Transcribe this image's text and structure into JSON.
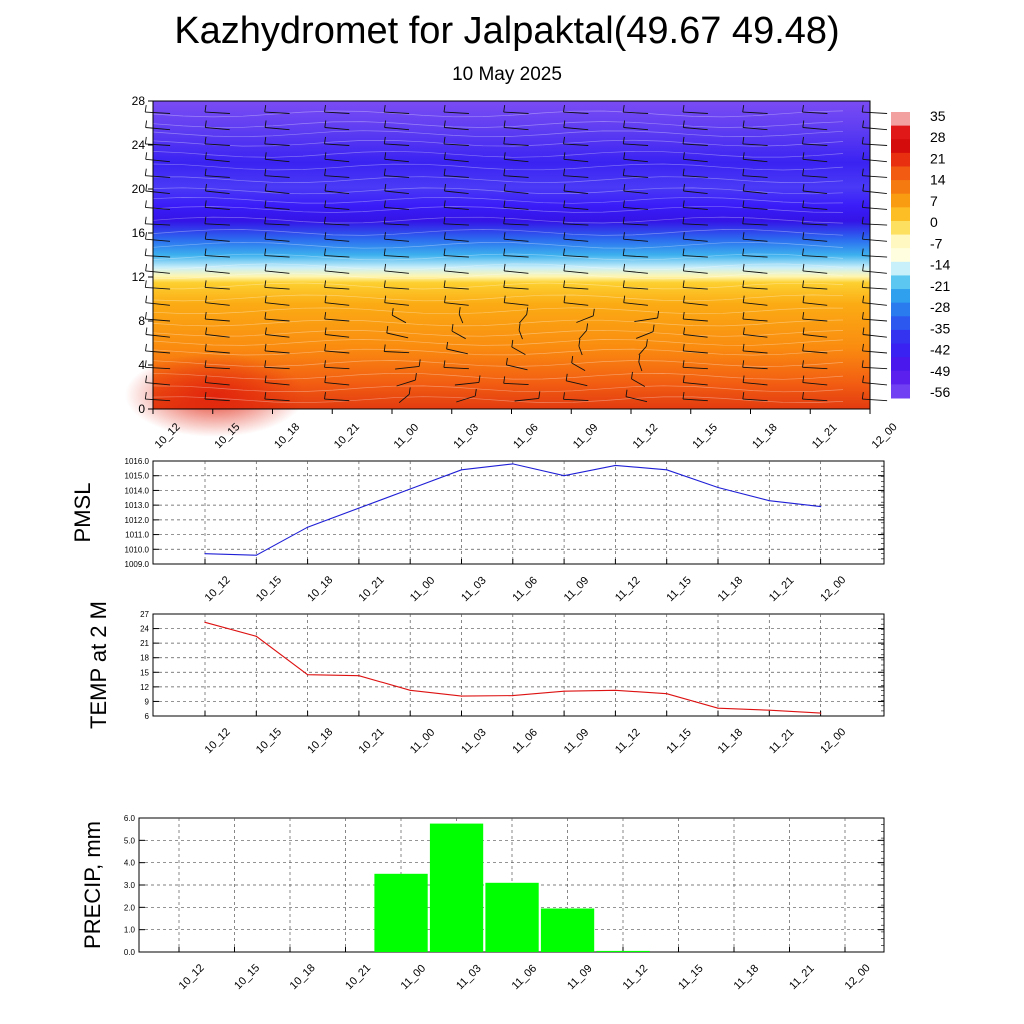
{
  "title": "Kazhydromet for Jalpaktal(49.67 49.48)",
  "subtitle": "10 May 2025",
  "colors": {
    "pmsl_line": "#1f1fd6",
    "temp_line": "#dd1111",
    "precip_bar": "#00ff00",
    "grid": "#555555"
  },
  "chart_data": [
    {
      "type": "heatmap",
      "id": "cross-section",
      "x_ticks": [
        "10_12",
        "10_15",
        "10_18",
        "10_21",
        "11_00",
        "11_03",
        "11_06",
        "11_09",
        "11_12",
        "11_15",
        "11_18",
        "11_21",
        "12_00"
      ],
      "y_ticks": [
        "0",
        "4",
        "8",
        "12",
        "16",
        "20",
        "24",
        "28"
      ],
      "ylim": [
        0,
        28
      ],
      "colorbar_labels": [
        "35",
        "28",
        "21",
        "14",
        "7",
        "0",
        "-7",
        "-14",
        "-21",
        "-28",
        "-35",
        "-42",
        "-49",
        "-56"
      ],
      "colorbar_range": [
        -60,
        38
      ],
      "grid": false,
      "legend": "right"
    },
    {
      "type": "line",
      "id": "pmsl",
      "ylabel": "PMSL",
      "categories": [
        "10_12",
        "10_15",
        "10_18",
        "10_21",
        "11_00",
        "11_03",
        "11_06",
        "11_09",
        "11_12",
        "11_15",
        "11_18",
        "11_21",
        "12_00"
      ],
      "values": [
        1009.7,
        1009.6,
        1011.5,
        1012.8,
        1014.1,
        1015.4,
        1015.8,
        1015.0,
        1015.7,
        1015.4,
        1014.2,
        1013.3,
        1012.9
      ],
      "ylim": [
        1009.0,
        1016.0
      ],
      "y_ticks": [
        "1016.0",
        "1015.0",
        "1014.0",
        "1013.0",
        "1012.0",
        "1011.0",
        "1010.0",
        "1009.0"
      ],
      "grid": true
    },
    {
      "type": "line",
      "id": "temp",
      "ylabel": "TEMP at 2 M",
      "categories": [
        "10_12",
        "10_15",
        "10_18",
        "10_21",
        "11_00",
        "11_03",
        "11_06",
        "11_09",
        "11_12",
        "11_15",
        "11_18",
        "11_21",
        "12_00"
      ],
      "values": [
        25.3,
        22.4,
        14.5,
        14.3,
        11.3,
        10.1,
        10.2,
        11.1,
        11.3,
        10.6,
        7.6,
        7.2,
        6.6
      ],
      "ylim": [
        6,
        27
      ],
      "y_ticks": [
        "27",
        "24",
        "21",
        "18",
        "15",
        "12",
        "9",
        "6"
      ],
      "grid": true
    },
    {
      "type": "bar",
      "id": "precip",
      "ylabel": "PRECIP, mm",
      "categories": [
        "10_12",
        "10_15",
        "10_18",
        "10_21",
        "11_00",
        "11_03",
        "11_06",
        "11_09",
        "11_12",
        "11_15",
        "11_18",
        "11_21",
        "12_00"
      ],
      "values": [
        0,
        0,
        0,
        0,
        3.5,
        5.75,
        3.1,
        1.95,
        0.05,
        0,
        0,
        0,
        0
      ],
      "ylim": [
        0,
        6.0
      ],
      "y_ticks": [
        "6.0",
        "5.0",
        "4.0",
        "3.0",
        "2.0",
        "1.0",
        "0.0"
      ],
      "grid": true
    }
  ]
}
